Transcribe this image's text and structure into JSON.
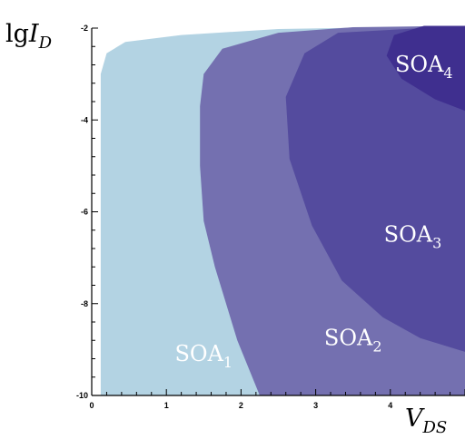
{
  "chart_data": {
    "type": "area",
    "title": "",
    "ylabel": {
      "base": "lg",
      "var": "I",
      "sub": "D"
    },
    "xlabel": {
      "var": "V",
      "sub": "DS"
    },
    "xlim": [
      0,
      5
    ],
    "ylim": [
      -10,
      -2
    ],
    "xticks": [
      0,
      1,
      2,
      3,
      4
    ],
    "yticks": [
      -2,
      -4,
      -6,
      -8,
      -10
    ],
    "grid": false,
    "regions": [
      {
        "name": "SOA",
        "index": "1",
        "color": "#b3d3e3",
        "boundary": [
          [
            0.12,
            -10
          ],
          [
            0.12,
            -3.0
          ],
          [
            0.2,
            -2.55
          ],
          [
            0.45,
            -2.3
          ],
          [
            1.2,
            -2.15
          ],
          [
            2.5,
            -2.02
          ],
          [
            5,
            -1.95
          ],
          [
            5,
            -10
          ]
        ],
        "label_pos": [
          1.5,
          -9.25
        ]
      },
      {
        "name": "SOA",
        "index": "2",
        "color": "#7470b0",
        "boundary": [
          [
            2.25,
            -10
          ],
          [
            1.95,
            -8.8
          ],
          [
            1.65,
            -7.2
          ],
          [
            1.5,
            -6.2
          ],
          [
            1.45,
            -5.0
          ],
          [
            1.45,
            -3.7
          ],
          [
            1.5,
            -3.0
          ],
          [
            1.75,
            -2.45
          ],
          [
            2.5,
            -2.1
          ],
          [
            3.5,
            -1.98
          ],
          [
            5,
            -1.95
          ],
          [
            5,
            -10
          ]
        ],
        "label_pos": [
          3.5,
          -8.9
        ]
      },
      {
        "name": "SOA",
        "index": "3",
        "color": "#544b9e",
        "boundary": [
          [
            5,
            -9.05
          ],
          [
            4.4,
            -8.75
          ],
          [
            3.9,
            -8.3
          ],
          [
            3.35,
            -7.5
          ],
          [
            2.95,
            -6.3
          ],
          [
            2.65,
            -4.85
          ],
          [
            2.6,
            -3.5
          ],
          [
            2.85,
            -2.55
          ],
          [
            3.3,
            -2.1
          ],
          [
            5,
            -1.95
          ]
        ],
        "label_pos": [
          4.3,
          -6.65
        ]
      },
      {
        "name": "SOA",
        "index": "4",
        "color": "#3f2f8f",
        "boundary": [
          [
            5,
            -3.8
          ],
          [
            4.6,
            -3.55
          ],
          [
            4.15,
            -3.1
          ],
          [
            3.95,
            -2.6
          ],
          [
            4.05,
            -2.15
          ],
          [
            4.45,
            -1.95
          ],
          [
            5,
            -1.95
          ]
        ],
        "label_pos": [
          4.45,
          -2.95
        ]
      }
    ]
  }
}
